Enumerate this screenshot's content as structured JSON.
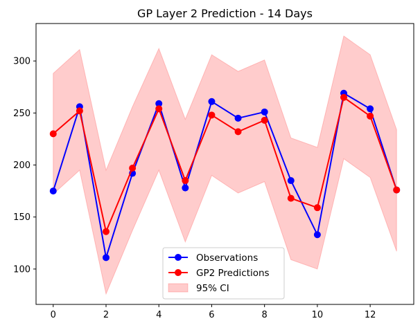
{
  "chart_data": {
    "type": "line",
    "title": "GP Layer 2 Prediction - 14 Days",
    "xlabel": "",
    "ylabel": "",
    "x": [
      0,
      1,
      2,
      3,
      4,
      5,
      6,
      7,
      8,
      9,
      10,
      11,
      12,
      13
    ],
    "xlim": [
      -0.65,
      13.65
    ],
    "ylim": [
      66,
      336
    ],
    "xticks": [
      0,
      2,
      4,
      6,
      8,
      10,
      12
    ],
    "yticks": [
      100,
      150,
      200,
      250,
      300
    ],
    "grid": false,
    "legend_position": "lower-center",
    "series": [
      {
        "name": "Observations",
        "color": "#0000ff",
        "marker": "circle",
        "values": [
          175,
          256,
          111,
          192,
          259,
          178,
          261,
          245,
          251,
          185,
          133,
          269,
          254,
          176
        ]
      },
      {
        "name": "GP2 Predictions",
        "color": "#ff0000",
        "marker": "circle",
        "values": [
          230,
          252,
          136,
          197,
          254,
          185,
          248,
          232,
          243,
          168,
          159,
          265,
          247,
          176
        ]
      }
    ],
    "band": {
      "name": "95% CI",
      "color": "#ff0000",
      "opacity": 0.2,
      "lower": [
        172,
        195,
        76,
        137,
        195,
        126,
        190,
        173,
        184,
        109,
        100,
        206,
        188,
        117
      ],
      "upper": [
        288,
        311,
        195,
        256,
        312,
        244,
        306,
        290,
        301,
        226,
        217,
        324,
        306,
        234
      ]
    }
  }
}
